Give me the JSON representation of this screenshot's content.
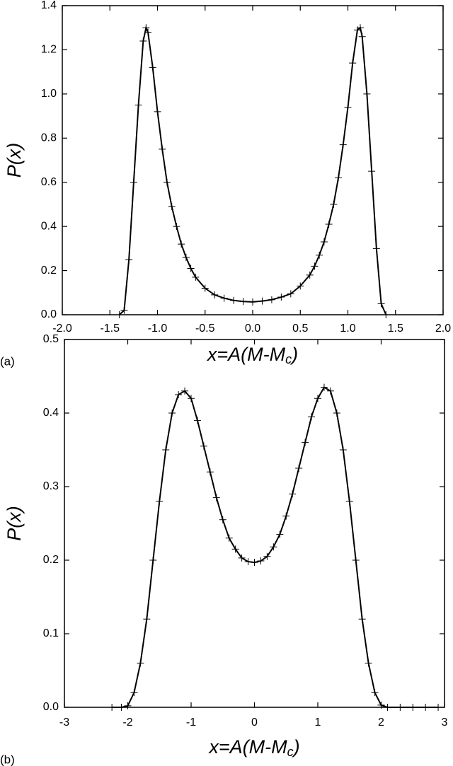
{
  "chart_data": [
    {
      "type": "line",
      "panel_label": "(a)",
      "ylabel": "P(x)",
      "xlabel": [
        "x=A(M-M",
        "c",
        ")"
      ],
      "xlim": [
        -2,
        2
      ],
      "ylim": [
        0,
        1.4
      ],
      "xticks": [
        {
          "value": -2,
          "label": "-2.0"
        },
        -1.5,
        {
          "value": -1,
          "label": "-1.0"
        },
        -0.5,
        {
          "value": 0,
          "label": "0.0"
        },
        0.5,
        {
          "value": 1,
          "label": "1.0"
        },
        1.5,
        {
          "value": 2,
          "label": "2.0"
        }
      ],
      "yticks": [
        {
          "value": 0,
          "label": "0.0"
        },
        0.2,
        0.4,
        0.6,
        0.8,
        {
          "value": 1,
          "label": "1.0"
        },
        1.2,
        1.4
      ],
      "series": [
        {
          "color": "#000000",
          "marker": "+",
          "x": [
            -1.4,
            -1.35,
            -1.3,
            -1.25,
            -1.2,
            -1.15,
            -1.12,
            -1.1,
            -1.05,
            -1.0,
            -0.95,
            -0.9,
            -0.85,
            -0.8,
            -0.75,
            -0.7,
            -0.65,
            -0.6,
            -0.5,
            -0.4,
            -0.3,
            -0.2,
            -0.1,
            0,
            0.1,
            0.2,
            0.3,
            0.4,
            0.5,
            0.6,
            0.65,
            0.7,
            0.75,
            0.8,
            0.85,
            0.9,
            0.95,
            1.0,
            1.05,
            1.1,
            1.13,
            1.15,
            1.2,
            1.25,
            1.3,
            1.35,
            1.4
          ],
          "values": [
            0,
            0.02,
            0.25,
            0.6,
            0.95,
            1.24,
            1.3,
            1.28,
            1.12,
            0.92,
            0.75,
            0.6,
            0.49,
            0.4,
            0.32,
            0.26,
            0.21,
            0.17,
            0.12,
            0.09,
            0.075,
            0.065,
            0.06,
            0.058,
            0.062,
            0.068,
            0.08,
            0.095,
            0.13,
            0.18,
            0.22,
            0.27,
            0.33,
            0.41,
            0.5,
            0.62,
            0.77,
            0.94,
            1.14,
            1.29,
            1.3,
            1.26,
            1.0,
            0.65,
            0.3,
            0.05,
            0
          ]
        }
      ]
    },
    {
      "type": "line",
      "panel_label": "(b)",
      "ylabel": "P(x)",
      "xlabel": [
        "x=A(M-M",
        "c",
        ")"
      ],
      "xlim": [
        -3,
        3
      ],
      "ylim": [
        0,
        0.5
      ],
      "xticks": [
        -3,
        -2,
        -1,
        0,
        1,
        2,
        3
      ],
      "yticks": [
        {
          "value": 0,
          "label": "0.0"
        },
        0.1,
        0.2,
        0.3,
        0.4,
        0.5
      ],
      "series": [
        {
          "color": "#000000",
          "marker": "+",
          "x": [
            -2.25,
            -2.1,
            -2.0,
            -1.9,
            -1.8,
            -1.7,
            -1.6,
            -1.5,
            -1.4,
            -1.3,
            -1.2,
            -1.1,
            -1.0,
            -0.9,
            -0.8,
            -0.7,
            -0.6,
            -0.5,
            -0.4,
            -0.3,
            -0.2,
            -0.1,
            0,
            0.1,
            0.2,
            0.3,
            0.4,
            0.5,
            0.6,
            0.7,
            0.8,
            0.9,
            1.0,
            1.1,
            1.2,
            1.3,
            1.4,
            1.5,
            1.6,
            1.7,
            1.8,
            1.9,
            2.0,
            2.1,
            2.3,
            2.5,
            2.7,
            2.9
          ],
          "values": [
            0,
            0,
            0.002,
            0.02,
            0.06,
            0.12,
            0.2,
            0.28,
            0.35,
            0.4,
            0.425,
            0.43,
            0.42,
            0.39,
            0.355,
            0.32,
            0.285,
            0.255,
            0.23,
            0.215,
            0.203,
            0.198,
            0.197,
            0.199,
            0.205,
            0.218,
            0.235,
            0.26,
            0.29,
            0.325,
            0.36,
            0.395,
            0.42,
            0.435,
            0.43,
            0.4,
            0.35,
            0.28,
            0.2,
            0.12,
            0.06,
            0.02,
            0.003,
            0,
            0,
            0,
            0,
            0
          ]
        }
      ]
    }
  ]
}
